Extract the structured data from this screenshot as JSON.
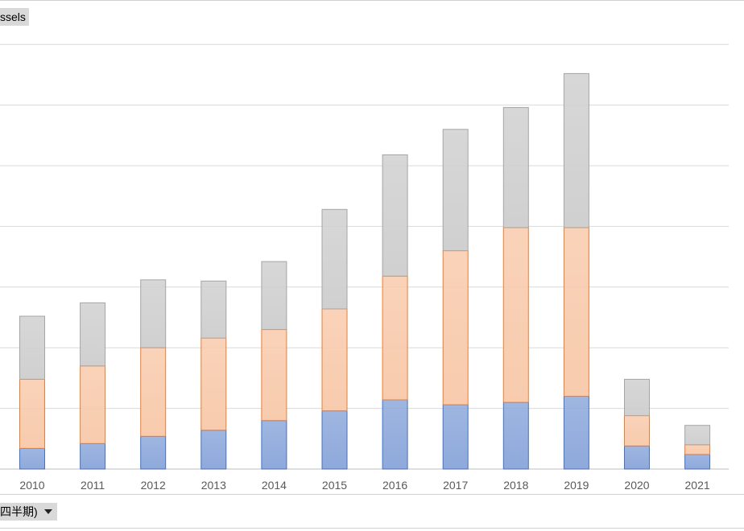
{
  "top_field_button": {
    "label": "ssels"
  },
  "bottom_field_button": {
    "label": "四半期)"
  },
  "chart_data": {
    "type": "bar",
    "stacked": true,
    "categories": [
      "2010",
      "2011",
      "2012",
      "2013",
      "2014",
      "2015",
      "2016",
      "2017",
      "2018",
      "2019",
      "2020",
      "2021"
    ],
    "series": [
      {
        "values": [
          1.7,
          2.1,
          2.7,
          3.2,
          4.0,
          4.8,
          5.7,
          5.3,
          5.5,
          6.0,
          1.9,
          1.2
        ],
        "color": "#8EA9DB",
        "stroke": "#4472C4"
      },
      {
        "values": [
          5.7,
          6.4,
          7.3,
          7.6,
          7.5,
          8.4,
          10.2,
          12.7,
          14.4,
          13.9,
          2.5,
          0.8
        ],
        "color": "#F8CBAD",
        "stroke": "#ED7D31"
      },
      {
        "values": [
          5.2,
          5.2,
          5.6,
          4.7,
          5.6,
          8.2,
          10.0,
          10.0,
          9.9,
          12.7,
          3.0,
          1.6
        ],
        "color": "#D0D0D0",
        "stroke": "#A5A5A5"
      }
    ],
    "ylim": [
      0,
      36
    ],
    "ytick_step": 5,
    "grid": true,
    "legend": "none"
  }
}
